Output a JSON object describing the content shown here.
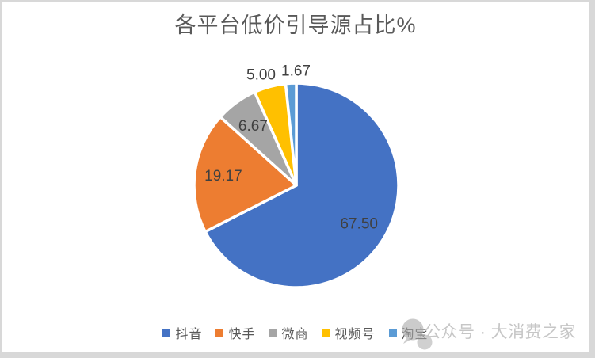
{
  "frame": {
    "border_color": "#d8d8d8",
    "background": "#ffffff"
  },
  "chart_data": {
    "type": "pie",
    "title": "各平台低价引导源占比%",
    "unit": "%",
    "slices": [
      {
        "label": "抖音",
        "name_en": "douyin",
        "value": 67.5,
        "display": "67.50",
        "color": "#4472C4",
        "label_placement": "inside"
      },
      {
        "label": "快手",
        "name_en": "kuaishou",
        "value": 19.17,
        "display": "19.17",
        "color": "#ED7D31",
        "label_placement": "inside"
      },
      {
        "label": "微商",
        "name_en": "weishang",
        "value": 6.67,
        "display": "6.67",
        "color": "#A5A5A5",
        "label_placement": "inside"
      },
      {
        "label": "视频号",
        "name_en": "shipinhao",
        "value": 5.0,
        "display": "5.00",
        "color": "#FFC000",
        "label_placement": "outside"
      },
      {
        "label": "淘宝",
        "name_en": "taobao",
        "value": 1.67,
        "display": "1.67",
        "color": "#5B9BD5",
        "label_placement": "outside"
      }
    ],
    "start_angle_deg": 0,
    "direction": "clockwise",
    "legend_position": "bottom",
    "title_color": "#595959",
    "label_color": "#404040",
    "legend_text_color": "#595959",
    "slice_gap_color": "#ffffff"
  },
  "watermark": {
    "text": "公众号 · 大消费之家",
    "icon": "chat-bubbles-icon",
    "color": "#c6c6c6"
  }
}
